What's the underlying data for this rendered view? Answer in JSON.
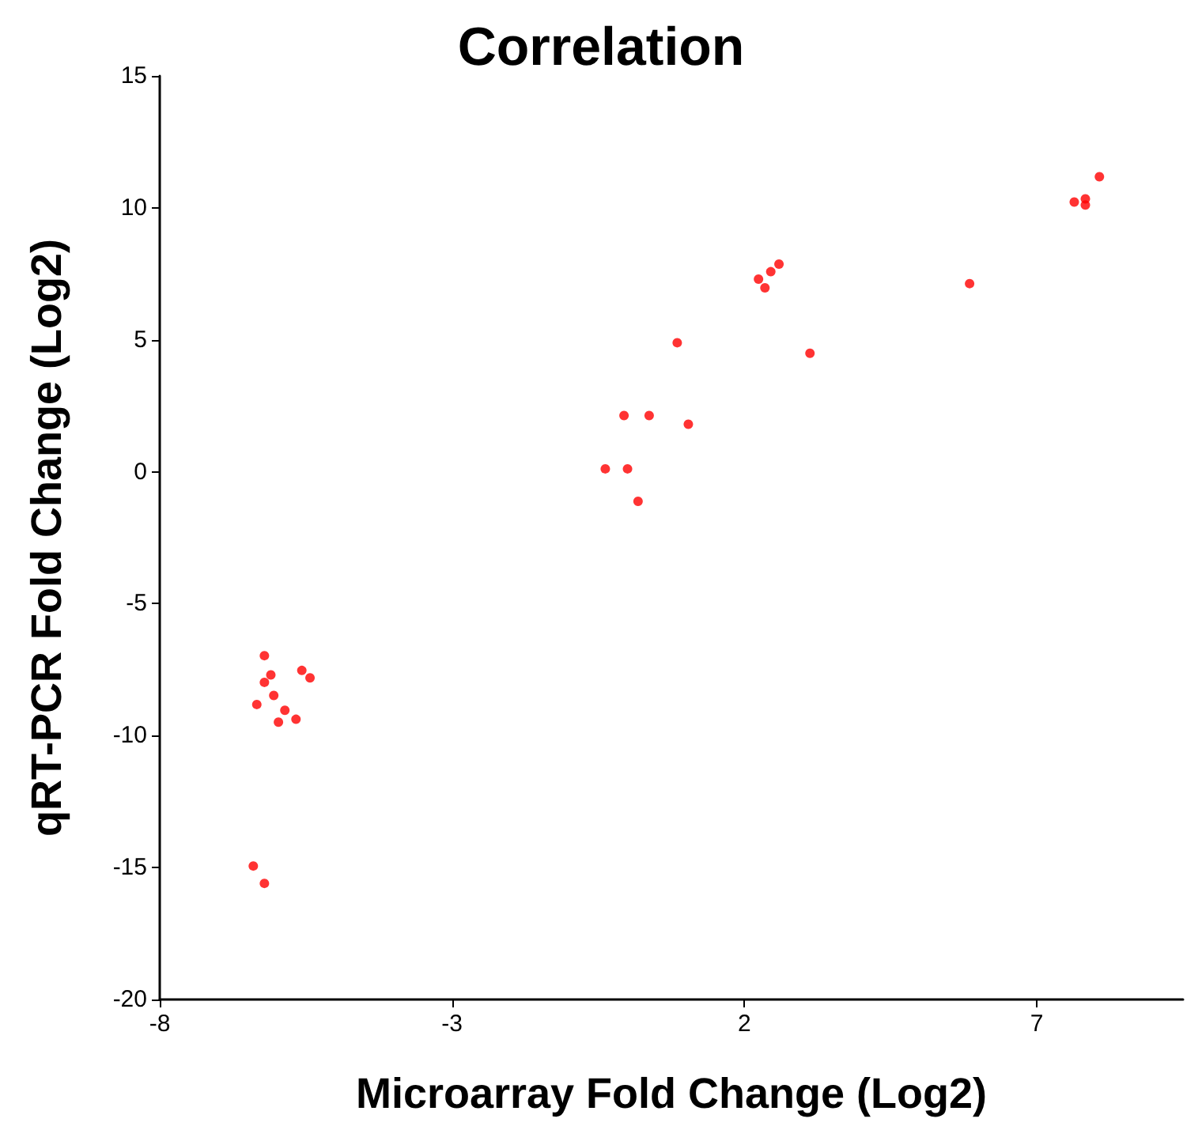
{
  "chart_data": {
    "type": "scatter",
    "title": "Correlation",
    "xlabel": "Microarray Fold Change (Log2)",
    "ylabel": "qRT-PCR Fold Change (Log2)",
    "xlim": [
      -8,
      9.5
    ],
    "xticks": [
      -8,
      -3,
      2,
      7
    ],
    "ylim": [
      -20,
      15
    ],
    "yticks": [
      -20,
      -15,
      -10,
      -5,
      0,
      5,
      10,
      15
    ],
    "marker": "circle",
    "series": [
      {
        "color": "#ff0000",
        "x": [
          -6.21,
          -6.1,
          -5.57,
          -5.43,
          -6.21,
          -6.05,
          -6.34,
          -5.86,
          -5.97,
          -5.67,
          -6.4,
          -6.21,
          0.85,
          3.12,
          -0.06,
          0.37,
          1.04,
          -0.38,
          0.0,
          0.18,
          2.59,
          2.45,
          2.24,
          2.35,
          8.07,
          7.64,
          7.83,
          7.83,
          5.85
        ],
        "values": [
          -6.97,
          -7.7,
          -7.53,
          -7.81,
          -7.98,
          -8.48,
          -8.82,
          -9.04,
          -9.49,
          -9.38,
          -14.94,
          -15.6,
          4.89,
          4.49,
          2.13,
          2.13,
          1.8,
          0.11,
          0.11,
          -1.12,
          7.87,
          7.58,
          7.3,
          6.97,
          11.18,
          10.22,
          10.34,
          10.11,
          7.13
        ]
      }
    ]
  }
}
